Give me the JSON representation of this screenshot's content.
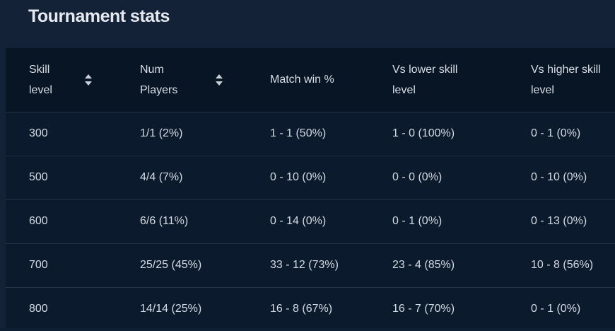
{
  "header": {
    "title": "Tournament stats"
  },
  "table": {
    "columns": [
      {
        "line1": "Skill",
        "line2": "level",
        "sortable": true
      },
      {
        "line1": "Num",
        "line2": "Players",
        "sortable": true
      },
      {
        "line1": "Match win %",
        "line2": "",
        "sortable": false
      },
      {
        "line1": "Vs lower skill",
        "line2": "level",
        "sortable": false
      },
      {
        "line1": "Vs higher skill",
        "line2": "level",
        "sortable": false
      }
    ],
    "rows": [
      [
        "300",
        "1/1 (2%)",
        "1 - 1 (50%)",
        "1 - 0 (100%)",
        "0 - 1 (0%)"
      ],
      [
        "500",
        "4/4 (7%)",
        "0 - 10 (0%)",
        "0 - 0 (0%)",
        "0 - 10 (0%)"
      ],
      [
        "600",
        "6/6 (11%)",
        "0 - 14 (0%)",
        "0 - 1 (0%)",
        "0 - 13 (0%)"
      ],
      [
        "700",
        "25/25 (45%)",
        "33 - 12 (73%)",
        "23 - 4 (85%)",
        "10 - 8 (56%)"
      ],
      [
        "800",
        "14/14 (25%)",
        "16 - 8 (67%)",
        "16 - 7 (70%)",
        "0 - 1 (0%)"
      ]
    ]
  },
  "colors": {
    "background": "#132236",
    "table_background": "#0b1a2c",
    "header_row_background": "#081524",
    "text": "#d8dee6",
    "divider": "#243448"
  },
  "icons": {
    "sort": "sort-up-down-icon"
  }
}
